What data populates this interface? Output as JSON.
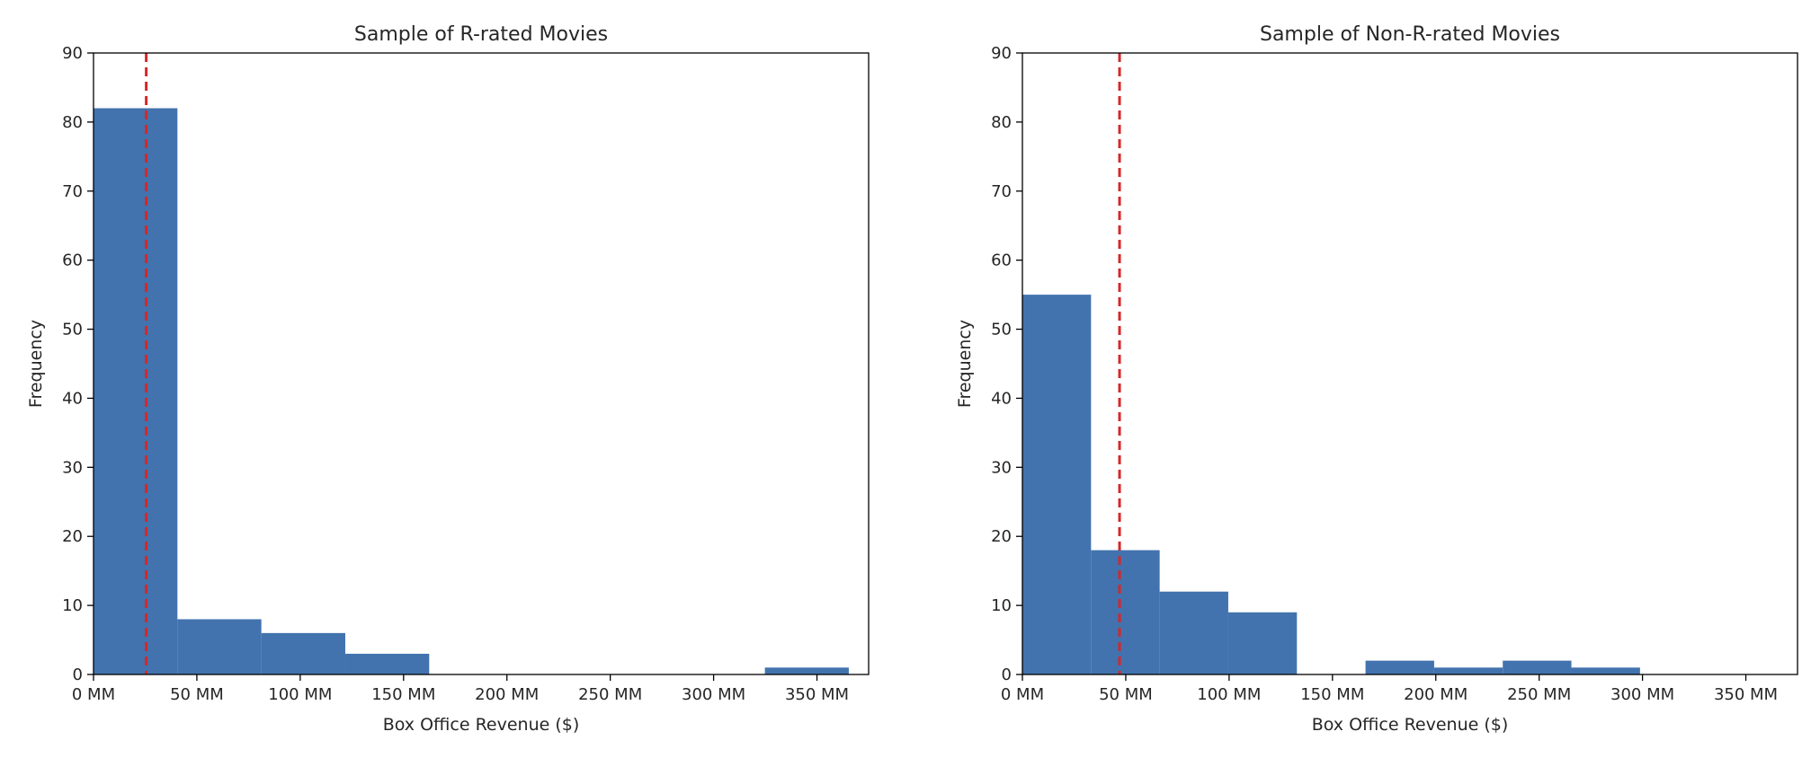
{
  "chart_data": [
    {
      "type": "bar",
      "title": "Sample of R-rated Movies",
      "xlabel": "Box Office Revenue ($)",
      "ylabel": "Frequency",
      "xlim": [
        0,
        375
      ],
      "ylim": [
        0,
        90
      ],
      "x_ticks": [
        {
          "value": 0,
          "label": "0 MM"
        },
        {
          "value": 50,
          "label": "50 MM"
        },
        {
          "value": 100,
          "label": "100 MM"
        },
        {
          "value": 150,
          "label": "150 MM"
        },
        {
          "value": 200,
          "label": "200 MM"
        },
        {
          "value": 250,
          "label": "250 MM"
        },
        {
          "value": 300,
          "label": "300 MM"
        },
        {
          "value": 350,
          "label": "350 MM"
        }
      ],
      "y_ticks": [
        0,
        10,
        20,
        30,
        40,
        50,
        60,
        70,
        80,
        90
      ],
      "bins": [
        {
          "start": 0,
          "end": 40.6,
          "count": 82
        },
        {
          "start": 40.6,
          "end": 81.2,
          "count": 8
        },
        {
          "start": 81.2,
          "end": 121.8,
          "count": 6
        },
        {
          "start": 121.8,
          "end": 162.4,
          "count": 3
        },
        {
          "start": 162.4,
          "end": 203.0,
          "count": 0
        },
        {
          "start": 203.0,
          "end": 243.6,
          "count": 0
        },
        {
          "start": 243.6,
          "end": 284.2,
          "count": 0
        },
        {
          "start": 284.2,
          "end": 324.8,
          "count": 0
        },
        {
          "start": 324.8,
          "end": 365.4,
          "count": 1
        }
      ],
      "reference_line": {
        "x": 25.5,
        "color": "#d62728",
        "style": "dashed"
      },
      "bar_color": "#4273ae",
      "grid": false
    },
    {
      "type": "bar",
      "title": "Sample of Non-R-rated Movies",
      "xlabel": "Box Office Revenue ($)",
      "ylabel": "Frequency",
      "xlim": [
        0,
        375
      ],
      "ylim": [
        0,
        90
      ],
      "x_ticks": [
        {
          "value": 0,
          "label": "0 MM"
        },
        {
          "value": 50,
          "label": "50 MM"
        },
        {
          "value": 100,
          "label": "100 MM"
        },
        {
          "value": 150,
          "label": "150 MM"
        },
        {
          "value": 200,
          "label": "200 MM"
        },
        {
          "value": 250,
          "label": "250 MM"
        },
        {
          "value": 300,
          "label": "300 MM"
        },
        {
          "value": 350,
          "label": "350 MM"
        }
      ],
      "y_ticks": [
        0,
        10,
        20,
        30,
        40,
        50,
        60,
        70,
        80,
        90
      ],
      "bins": [
        {
          "start": 0,
          "end": 33.2,
          "count": 55
        },
        {
          "start": 33.2,
          "end": 66.4,
          "count": 18
        },
        {
          "start": 66.4,
          "end": 99.6,
          "count": 12
        },
        {
          "start": 99.6,
          "end": 132.8,
          "count": 9
        },
        {
          "start": 132.8,
          "end": 166.0,
          "count": 0
        },
        {
          "start": 166.0,
          "end": 199.2,
          "count": 2
        },
        {
          "start": 199.2,
          "end": 232.4,
          "count": 1
        },
        {
          "start": 232.4,
          "end": 265.6,
          "count": 2
        },
        {
          "start": 265.6,
          "end": 298.8,
          "count": 1
        }
      ],
      "reference_line": {
        "x": 47,
        "color": "#d62728",
        "style": "dashed"
      },
      "bar_color": "#4273ae",
      "grid": false
    }
  ]
}
